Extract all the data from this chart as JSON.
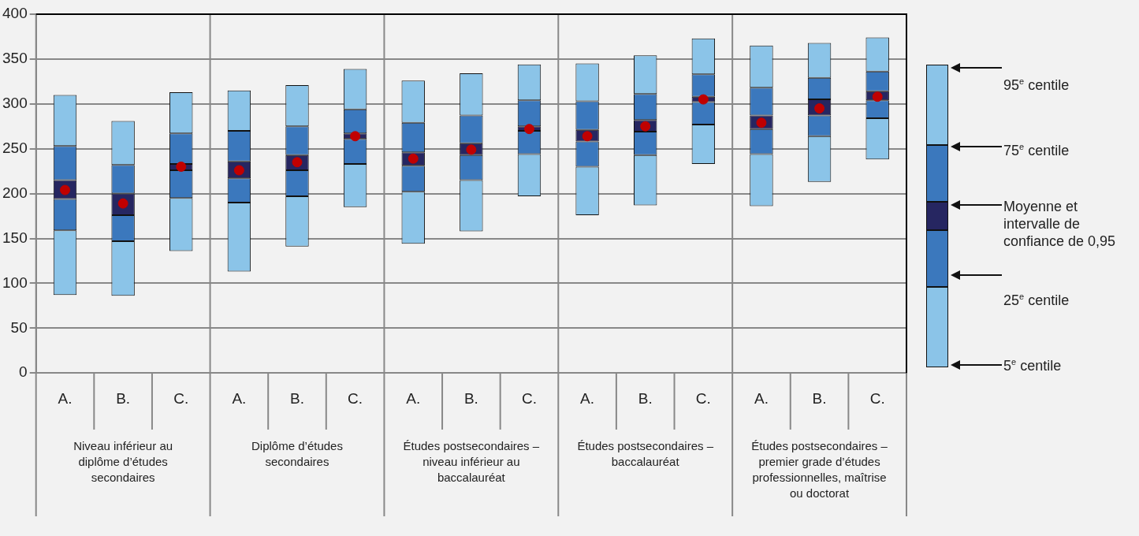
{
  "chart_data": {
    "type": "bar",
    "categories": [
      "A.",
      "B.",
      "C.",
      "A.",
      "B.",
      "C.",
      "A.",
      "B.",
      "C.",
      "A.",
      "B.",
      "C.",
      "A.",
      "B.",
      "C."
    ],
    "series": [
      {
        "color": "#8bc4e8",
        "base": [
          87,
          86,
          136,
          113,
          141,
          185,
          144,
          158,
          197,
          176,
          187,
          233,
          186,
          213,
          238
        ],
        "values": [
          72,
          61,
          59,
          77,
          56,
          48,
          58,
          57,
          47,
          54,
          56,
          44,
          58,
          51,
          46
        ]
      },
      {
        "color": "#3b78bd",
        "base": [
          159,
          147,
          195,
          190,
          197,
          233,
          202,
          215,
          244,
          230,
          243,
          277,
          244,
          264,
          284
        ],
        "values": [
          35,
          29,
          31,
          27,
          29,
          28,
          29,
          28,
          26,
          28,
          26,
          25,
          28,
          23,
          20
        ]
      },
      {
        "color": "#262661",
        "base": [
          194,
          176,
          226,
          217,
          226,
          261,
          231,
          243,
          270,
          258,
          269,
          302,
          272,
          287,
          304
        ],
        "values": [
          21,
          24,
          7,
          19,
          17,
          6,
          15,
          13,
          5,
          13,
          13,
          6,
          15,
          18,
          10
        ]
      },
      {
        "color": "#3b78bd",
        "base": [
          215,
          200,
          233,
          236,
          243,
          267,
          246,
          256,
          275,
          271,
          282,
          308,
          287,
          305,
          314
        ],
        "values": [
          38,
          32,
          34,
          34,
          32,
          27,
          33,
          31,
          29,
          32,
          29,
          25,
          31,
          24,
          22
        ]
      },
      {
        "color": "#8bc4e8",
        "base": [
          253,
          232,
          267,
          270,
          275,
          294,
          279,
          287,
          304,
          303,
          311,
          333,
          318,
          329,
          336
        ],
        "values": [
          57,
          49,
          46,
          45,
          46,
          45,
          47,
          47,
          40,
          42,
          43,
          40,
          47,
          39,
          38
        ]
      },
      {
        "type": "scatter",
        "color": "#c00000",
        "marker": "circle",
        "values": [
          204,
          189,
          230,
          226,
          235,
          264,
          239,
          249,
          272,
          264,
          275,
          305,
          279,
          295,
          308
        ]
      }
    ],
    "ylim": [
      0,
      400
    ],
    "yticks": [
      0,
      50,
      100,
      150,
      200,
      250,
      300,
      350,
      400
    ],
    "grid": "y",
    "annotations": [
      "Niveau inférieur au diplôme d’études secondaires",
      "Diplôme d’études secondaires",
      "Études postsecondaires – niveau inférieur au baccalauréat",
      "Études postsecondaires – baccalauréat",
      "Études postsecondaires – premier grade d’études professionnelles, maîtrise ou doctorat",
      "95$^{e}$ centile",
      "75$^{e}$ centile",
      "Moyenne et intervalle de confiance de 0,95",
      "25$^{e}$ centile",
      "5$^{e}$ centile"
    ]
  }
}
